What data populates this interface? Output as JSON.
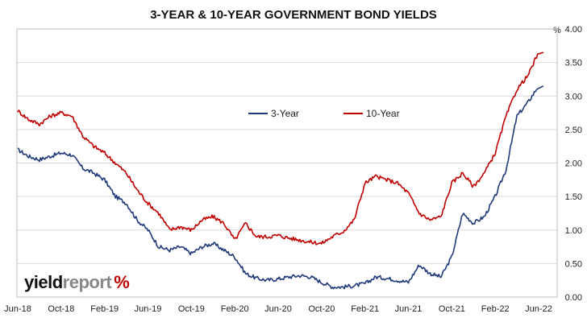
{
  "chart_data": {
    "type": "line",
    "title": "3-YEAR & 10-YEAR GOVERNMENT BOND YIELDS",
    "ylabel": "%",
    "ylim": [
      0,
      4
    ],
    "yticks": [
      "0.00",
      "0.50",
      "1.00",
      "1.50",
      "2.00",
      "2.50",
      "3.00",
      "3.50",
      "4.00"
    ],
    "x_tick_labels": [
      "Jun-18",
      "Oct-18",
      "Feb-19",
      "Jun-19",
      "Oct-19",
      "Feb-20",
      "Jun-20",
      "Oct-20",
      "Feb-21",
      "Jun-21",
      "Oct-21",
      "Feb-22",
      "Jun-22"
    ],
    "x_tick_dates": [
      "2018-06",
      "2018-10",
      "2019-02",
      "2019-06",
      "2019-10",
      "2020-02",
      "2020-06",
      "2020-10",
      "2021-02",
      "2021-06",
      "2021-10",
      "2022-02",
      "2022-06"
    ],
    "legend_position": "center",
    "grid": true,
    "series": [
      {
        "name": "3-Year",
        "color": "#1f3a7a",
        "points": [
          [
            "2018-06",
            2.2
          ],
          [
            "2018-07",
            2.1
          ],
          [
            "2018-08",
            2.05
          ],
          [
            "2018-09",
            2.1
          ],
          [
            "2018-10",
            2.15
          ],
          [
            "2018-11",
            2.12
          ],
          [
            "2018-12",
            1.92
          ],
          [
            "2019-01",
            1.85
          ],
          [
            "2019-02",
            1.75
          ],
          [
            "2019-03",
            1.5
          ],
          [
            "2019-04",
            1.4
          ],
          [
            "2019-05",
            1.15
          ],
          [
            "2019-06",
            1.0
          ],
          [
            "2019-07",
            0.75
          ],
          [
            "2019-08",
            0.7
          ],
          [
            "2019-09",
            0.75
          ],
          [
            "2019-10",
            0.65
          ],
          [
            "2019-11",
            0.75
          ],
          [
            "2019-12",
            0.8
          ],
          [
            "2020-01",
            0.7
          ],
          [
            "2020-02",
            0.6
          ],
          [
            "2020-03",
            0.35
          ],
          [
            "2020-04",
            0.28
          ],
          [
            "2020-05",
            0.25
          ],
          [
            "2020-06",
            0.27
          ],
          [
            "2020-07",
            0.3
          ],
          [
            "2020-08",
            0.32
          ],
          [
            "2020-09",
            0.3
          ],
          [
            "2020-10",
            0.22
          ],
          [
            "2020-11",
            0.15
          ],
          [
            "2020-12",
            0.15
          ],
          [
            "2021-01",
            0.17
          ],
          [
            "2021-02",
            0.2
          ],
          [
            "2021-03",
            0.3
          ],
          [
            "2021-04",
            0.28
          ],
          [
            "2021-05",
            0.25
          ],
          [
            "2021-06",
            0.22
          ],
          [
            "2021-07",
            0.48
          ],
          [
            "2021-08",
            0.35
          ],
          [
            "2021-09",
            0.3
          ],
          [
            "2021-10",
            0.6
          ],
          [
            "2021-11",
            1.25
          ],
          [
            "2021-12",
            1.1
          ],
          [
            "2022-01",
            1.2
          ],
          [
            "2022-02",
            1.5
          ],
          [
            "2022-03",
            1.9
          ],
          [
            "2022-04",
            2.7
          ],
          [
            "2022-05",
            2.9
          ],
          [
            "2022-06",
            3.15
          ]
        ]
      },
      {
        "name": "10-Year",
        "color": "#c00000",
        "points": [
          [
            "2018-06",
            2.78
          ],
          [
            "2018-07",
            2.65
          ],
          [
            "2018-08",
            2.58
          ],
          [
            "2018-09",
            2.7
          ],
          [
            "2018-10",
            2.75
          ],
          [
            "2018-11",
            2.7
          ],
          [
            "2018-12",
            2.4
          ],
          [
            "2019-01",
            2.25
          ],
          [
            "2019-02",
            2.15
          ],
          [
            "2019-03",
            2.0
          ],
          [
            "2019-04",
            1.85
          ],
          [
            "2019-05",
            1.6
          ],
          [
            "2019-06",
            1.4
          ],
          [
            "2019-07",
            1.25
          ],
          [
            "2019-08",
            1.0
          ],
          [
            "2019-09",
            1.05
          ],
          [
            "2019-10",
            1.0
          ],
          [
            "2019-11",
            1.15
          ],
          [
            "2019-12",
            1.2
          ],
          [
            "2020-01",
            1.1
          ],
          [
            "2020-02",
            0.85
          ],
          [
            "2020-03",
            1.1
          ],
          [
            "2020-04",
            0.9
          ],
          [
            "2020-05",
            0.9
          ],
          [
            "2020-06",
            0.92
          ],
          [
            "2020-07",
            0.88
          ],
          [
            "2020-08",
            0.85
          ],
          [
            "2020-09",
            0.82
          ],
          [
            "2020-10",
            0.8
          ],
          [
            "2020-11",
            0.9
          ],
          [
            "2020-12",
            0.98
          ],
          [
            "2021-01",
            1.15
          ],
          [
            "2021-02",
            1.7
          ],
          [
            "2021-03",
            1.8
          ],
          [
            "2021-04",
            1.75
          ],
          [
            "2021-05",
            1.7
          ],
          [
            "2021-06",
            1.55
          ],
          [
            "2021-07",
            1.25
          ],
          [
            "2021-08",
            1.15
          ],
          [
            "2021-09",
            1.2
          ],
          [
            "2021-10",
            1.7
          ],
          [
            "2021-11",
            1.85
          ],
          [
            "2021-12",
            1.65
          ],
          [
            "2022-01",
            1.85
          ],
          [
            "2022-02",
            2.15
          ],
          [
            "2022-03",
            2.7
          ],
          [
            "2022-04",
            3.1
          ],
          [
            "2022-05",
            3.3
          ],
          [
            "2022-06",
            3.65
          ]
        ]
      }
    ]
  },
  "brand": {
    "part1": "yield",
    "part2": "report",
    "symbol": "%"
  }
}
